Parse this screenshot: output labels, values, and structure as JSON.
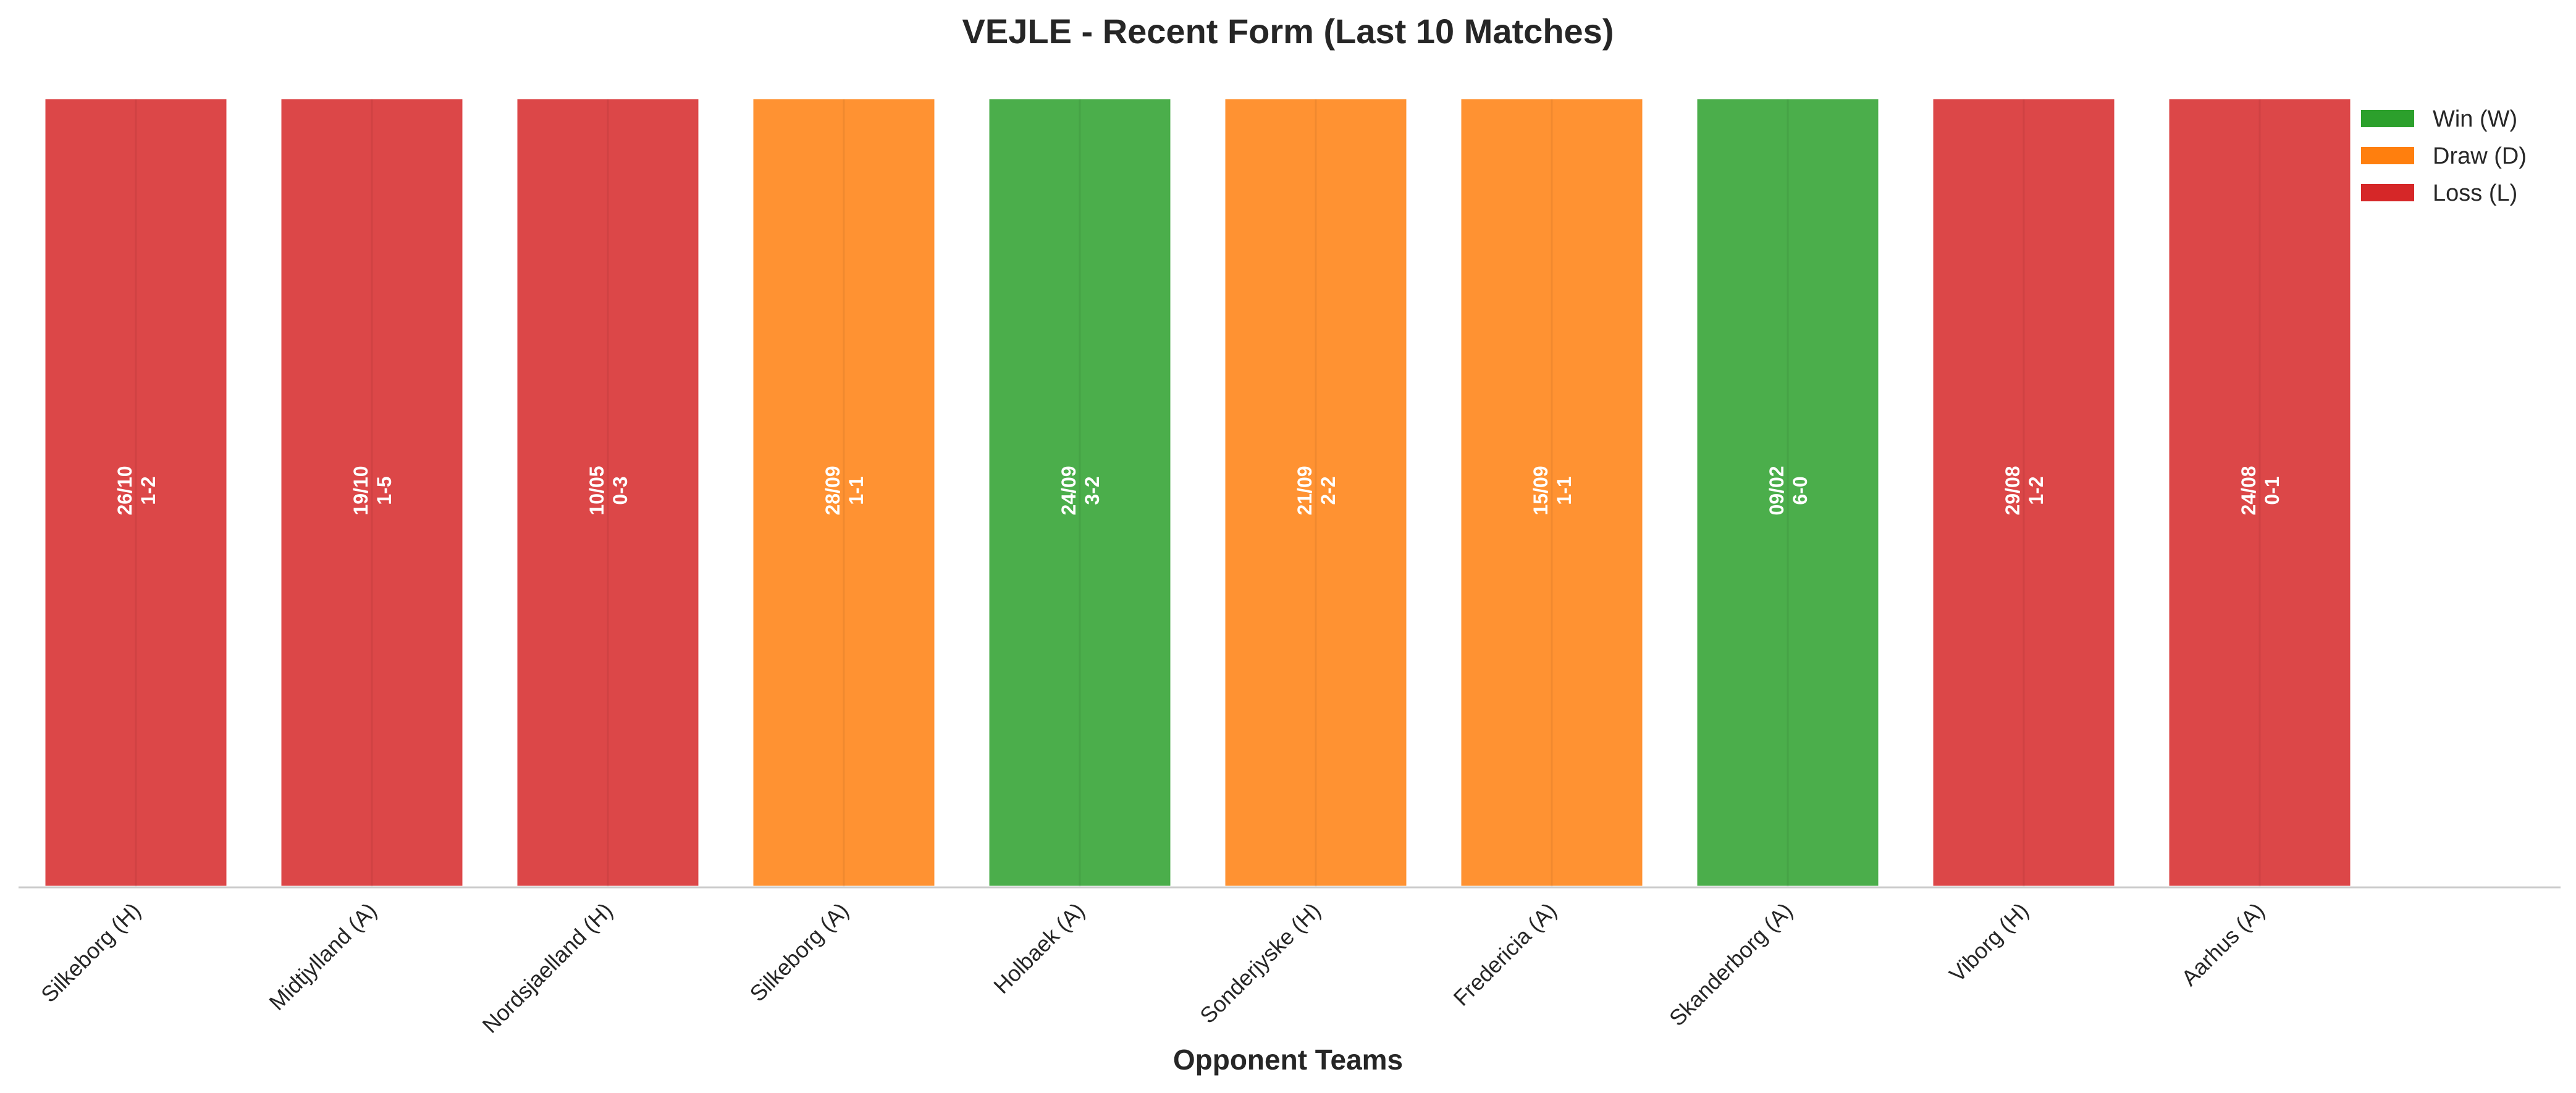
{
  "chart_data": {
    "type": "bar",
    "title": "VEJLE - Recent Form (Last 10 Matches)",
    "xlabel": "Opponent Teams",
    "ylabel": "",
    "grid": false,
    "legend_placement": "top-right",
    "categories": [
      "Silkeborg (H)",
      "Midtjylland (A)",
      "Nordsjaelland (H)",
      "Silkeborg (A)",
      "Holbaek (A)",
      "Sonderjyske (H)",
      "Fredericia (A)",
      "Skanderborg (A)",
      "Viborg (H)",
      "Aarhus (A)"
    ],
    "values": [
      1,
      1,
      1,
      1,
      1,
      1,
      1,
      1,
      1,
      1
    ],
    "results": [
      "L",
      "L",
      "L",
      "D",
      "W",
      "D",
      "D",
      "W",
      "L",
      "L"
    ],
    "dates": [
      "26/10",
      "19/10",
      "10/05",
      "28/09",
      "24/09",
      "21/09",
      "15/09",
      "09/02",
      "29/08",
      "24/08"
    ],
    "scores": [
      "1-2",
      "1-5",
      "0-3",
      "1-1",
      "3-2",
      "2-2",
      "1-1",
      "6-0",
      "1-2",
      "0-1"
    ],
    "legend": [
      {
        "key": "W",
        "label": "Win (W)",
        "color": "#2ca02c"
      },
      {
        "key": "D",
        "label": "Draw (D)",
        "color": "#ff7f0e"
      },
      {
        "key": "L",
        "label": "Loss (L)",
        "color": "#d62728"
      }
    ]
  }
}
